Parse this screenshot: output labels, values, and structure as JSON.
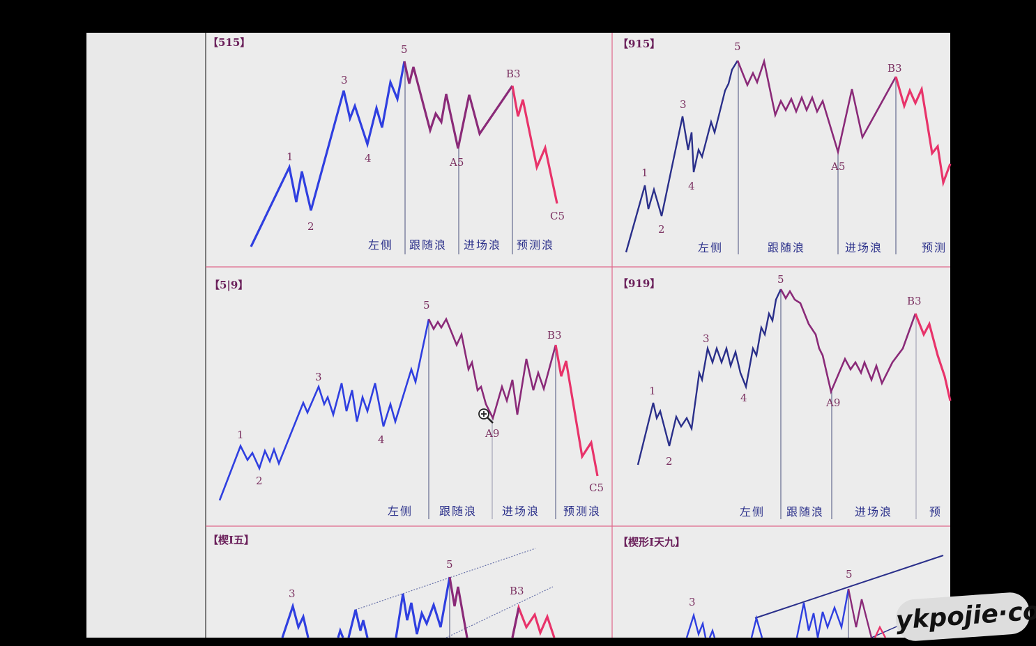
{
  "panels": [
    {
      "title": "【515】",
      "labels": {
        "w1": "1",
        "w2": "2",
        "w3": "3",
        "w4": "4",
        "w5": "5",
        "a": "A5",
        "b": "B3",
        "c": "C5"
      },
      "zones": [
        "左侧",
        "跟随浪",
        "进场浪",
        "预测浪"
      ]
    },
    {
      "title": "【915】",
      "labels": {
        "w1": "1",
        "w2": "2",
        "w3": "3",
        "w4": "4",
        "w5": "5",
        "a": "A5",
        "b": "B3"
      },
      "zones": [
        "左侧",
        "跟随浪",
        "进场浪",
        "预测"
      ]
    },
    {
      "title": "【5|9】",
      "labels": {
        "w1": "1",
        "w2": "2",
        "w3": "3",
        "w4": "4",
        "w5": "5",
        "a": "A9",
        "b": "B3",
        "c": "C5"
      },
      "zones": [
        "左侧",
        "跟随浪",
        "进场浪",
        "预测浪"
      ]
    },
    {
      "title": "【919】",
      "labels": {
        "w1": "1",
        "w2": "2",
        "w3": "3",
        "w4": "4",
        "w5": "5",
        "a": "A9",
        "b": "B3"
      },
      "zones": [
        "左侧",
        "跟随浪",
        "进场浪",
        "预"
      ]
    },
    {
      "title": "【楔I五】",
      "labels": {
        "w3": "3",
        "w5": "5",
        "b": "B3"
      }
    },
    {
      "title": "【楔形I天九】",
      "labels": {
        "w3": "3",
        "w5": "5"
      }
    }
  ],
  "colors": {
    "impulse": "#2f3fe0",
    "follow": "#8a2a78",
    "forecast": "#e8336a",
    "divider": "#e0678a",
    "background": "#f0f0f0"
  },
  "cursor": "zoom-in-icon",
  "watermark": "ykpojie·com"
}
